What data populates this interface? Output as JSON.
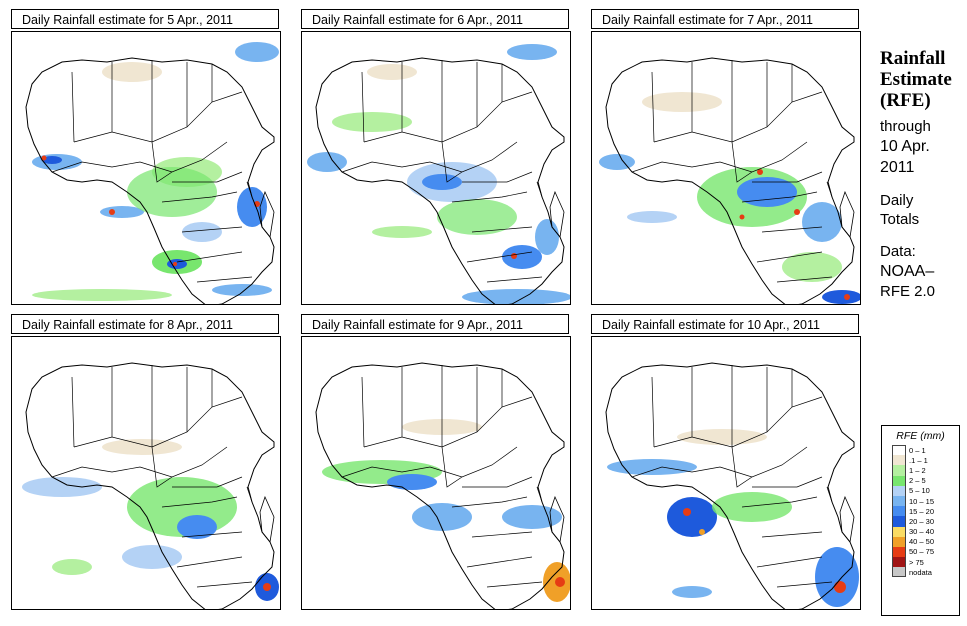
{
  "panels": [
    {
      "title": "Daily Rainfall estimate for  5 Apr., 2011"
    },
    {
      "title": "Daily Rainfall estimate for  6 Apr., 2011"
    },
    {
      "title": "Daily Rainfall estimate for  7 Apr., 2011"
    },
    {
      "title": "Daily Rainfall estimate for  8 Apr., 2011"
    },
    {
      "title": "Daily Rainfall estimate for  9 Apr., 2011"
    },
    {
      "title": "Daily Rainfall estimate for  10 Apr., 2011"
    }
  ],
  "sidebar": {
    "title_line1": "Rainfall",
    "title_line2": "Estimate",
    "title_line3": "(RFE)",
    "through": "through",
    "date_line1": "10 Apr.",
    "date_line2": "2011",
    "daily_line1": "Daily",
    "daily_line2": "Totals",
    "data_line1": "Data:",
    "data_line2": "NOAA–",
    "data_line3": "RFE 2.0"
  },
  "legend": {
    "title": "RFE (mm)",
    "items": [
      {
        "label": "0 – 1",
        "color": "#ffffff"
      },
      {
        "label": ".1 – 1",
        "color": "#f0e6d2"
      },
      {
        "label": "1 – 2",
        "color": "#b4f0a0"
      },
      {
        "label": "2 – 5",
        "color": "#78e66e"
      },
      {
        "label": "5 – 10",
        "color": "#b4d2f5"
      },
      {
        "label": "10 – 15",
        "color": "#78b4f0"
      },
      {
        "label": "15 – 20",
        "color": "#468cf0"
      },
      {
        "label": "20 – 30",
        "color": "#1e5adc"
      },
      {
        "label": "30 – 40",
        "color": "#fadc64"
      },
      {
        "label": "40 – 50",
        "color": "#f0a028"
      },
      {
        "label": "50 – 75",
        "color": "#e63c14"
      },
      {
        "label": "> 75",
        "color": "#a01414"
      },
      {
        "label": "nodata",
        "color": "#c8c8c8"
      }
    ]
  }
}
